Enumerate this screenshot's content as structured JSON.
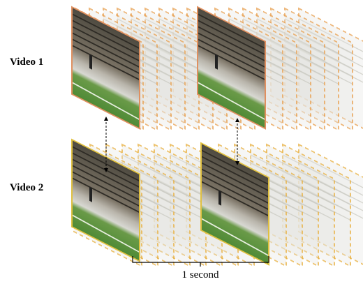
{
  "rows": [
    {
      "label": "Video 1"
    },
    {
      "label": "Video 2"
    }
  ],
  "timescale": {
    "label": "1 second"
  }
}
